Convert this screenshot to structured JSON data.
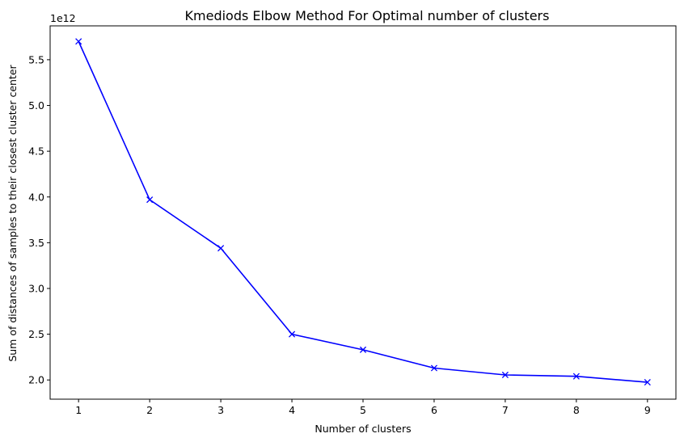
{
  "chart_data": {
    "type": "line",
    "title": "Kmediods Elbow Method For Optimal number of clusters",
    "xlabel": "Number of clusters",
    "ylabel": "Sum of distances of samples to their closest cluster center",
    "y_offset_label": "1e12",
    "x": [
      1,
      2,
      3,
      4,
      5,
      6,
      7,
      8,
      9
    ],
    "series": [
      {
        "values": [
          5700000000000.0,
          3970000000000.0,
          3440000000000.0,
          2500000000000.0,
          2330000000000.0,
          2130000000000.0,
          2055000000000.0,
          2040000000000.0,
          1975000000000.0
        ],
        "color": "#0000ff",
        "marker": "x"
      }
    ],
    "xticks": [
      "1",
      "2",
      "3",
      "4",
      "5",
      "6",
      "7",
      "8",
      "9"
    ],
    "yticks": [
      {
        "value": 2.0,
        "label": "2.0"
      },
      {
        "value": 2.5,
        "label": "2.5"
      },
      {
        "value": 3.0,
        "label": "3.0"
      },
      {
        "value": 3.5,
        "label": "3.5"
      },
      {
        "value": 4.0,
        "label": "4.0"
      },
      {
        "value": 4.5,
        "label": "4.5"
      },
      {
        "value": 5.0,
        "label": "5.0"
      },
      {
        "value": 5.5,
        "label": "5.5"
      }
    ],
    "xlim": [
      0.6,
      9.4
    ],
    "ylim": [
      1.79,
      5.87
    ],
    "grid": false
  }
}
